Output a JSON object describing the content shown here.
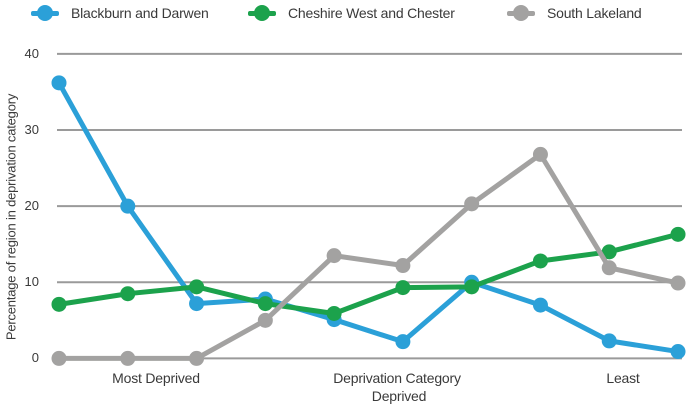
{
  "chart_data": {
    "type": "line",
    "title": "",
    "x_axis_title": "Deprivation Category",
    "x_tick_labels": [
      "Most Deprived",
      "Deprived",
      "Least"
    ],
    "ylabel": "Percentage of region in deprivation category",
    "ylim": [
      0,
      40
    ],
    "yticks": [
      0,
      10,
      20,
      30,
      40
    ],
    "grid": "horizontal",
    "legend_position": "top",
    "x_points_per_series": 10,
    "series": [
      {
        "name": "Blackburn and Darwen",
        "color": "#2BA0D8",
        "values": [
          36.2,
          20.0,
          7.2,
          7.8,
          5.1,
          2.2,
          10.0,
          7.0,
          2.3,
          0.9
        ]
      },
      {
        "name": "Cheshire West and Chester",
        "color": "#1CA24C",
        "values": [
          7.1,
          8.5,
          9.4,
          7.2,
          5.9,
          9.3,
          9.4,
          12.8,
          14.0,
          16.3
        ]
      },
      {
        "name": "South Lakeland",
        "color": "#A3A2A1",
        "values": [
          0.0,
          0.0,
          0.0,
          5.0,
          13.5,
          12.2,
          20.3,
          26.8,
          11.9,
          9.9
        ]
      }
    ],
    "colors": {
      "gridline": "#9A9A9A",
      "text": "#3A3A3A",
      "background": "#FFFFFF"
    }
  }
}
